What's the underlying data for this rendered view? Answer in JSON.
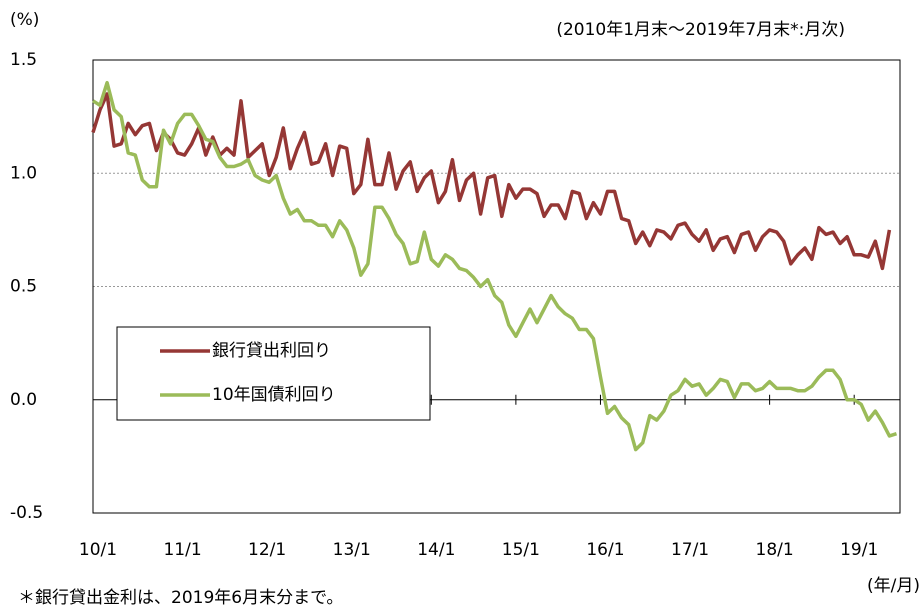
{
  "chart_data": {
    "type": "line",
    "subtitle": "(2010年1月末～2019年7月末*:月次)",
    "y_unit": "(%)",
    "x_unit": "(年/月)",
    "footnote": "＊銀行貸出金利は、2019年6月末分まで。",
    "categories": [
      "10/1",
      null,
      null,
      null,
      null,
      null,
      null,
      null,
      null,
      null,
      null,
      null,
      "11/1",
      null,
      null,
      null,
      null,
      null,
      null,
      null,
      null,
      null,
      null,
      null,
      "12/1",
      null,
      null,
      null,
      null,
      null,
      null,
      null,
      null,
      null,
      null,
      null,
      "13/1",
      null,
      null,
      null,
      null,
      null,
      null,
      null,
      null,
      null,
      null,
      null,
      "14/1",
      null,
      null,
      null,
      null,
      null,
      null,
      null,
      null,
      null,
      null,
      null,
      "15/1",
      null,
      null,
      null,
      null,
      null,
      null,
      null,
      null,
      null,
      null,
      null,
      "16/1",
      null,
      null,
      null,
      null,
      null,
      null,
      null,
      null,
      null,
      null,
      null,
      "17/1",
      null,
      null,
      null,
      null,
      null,
      null,
      null,
      null,
      null,
      null,
      null,
      "18/1",
      null,
      null,
      null,
      null,
      null,
      null,
      null,
      null,
      null,
      null,
      null,
      "19/1",
      null,
      null,
      null,
      null,
      null,
      null
    ],
    "series": [
      {
        "name": "銀行貸出利回り",
        "color": "#953735",
        "values": [
          1.18,
          1.28,
          1.35,
          1.12,
          1.13,
          1.22,
          1.17,
          1.21,
          1.22,
          1.1,
          1.18,
          1.15,
          1.09,
          1.08,
          1.13,
          1.2,
          1.08,
          1.16,
          1.08,
          1.11,
          1.08,
          1.32,
          1.07,
          1.1,
          1.13,
          0.99,
          1.07,
          1.2,
          1.02,
          1.11,
          1.18,
          1.04,
          1.05,
          1.13,
          0.99,
          1.12,
          1.11,
          0.91,
          0.95,
          1.15,
          0.95,
          0.95,
          1.09,
          0.93,
          1.01,
          1.05,
          0.92,
          0.98,
          1.01,
          0.87,
          0.92,
          1.06,
          0.88,
          0.97,
          1.0,
          0.82,
          0.98,
          0.99,
          0.81,
          0.95,
          0.89,
          0.93,
          0.93,
          0.91,
          0.81,
          0.86,
          0.86,
          0.8,
          0.92,
          0.91,
          0.8,
          0.87,
          0.82,
          0.92,
          0.92,
          0.8,
          0.79,
          0.69,
          0.74,
          0.68,
          0.75,
          0.74,
          0.71,
          0.77,
          0.78,
          0.73,
          0.7,
          0.75,
          0.66,
          0.71,
          0.72,
          0.65,
          0.73,
          0.74,
          0.66,
          0.72,
          0.75,
          0.74,
          0.7,
          0.6,
          0.64,
          0.67,
          0.62,
          0.76,
          0.73,
          0.74,
          0.69,
          0.72,
          0.64,
          0.64,
          0.63,
          0.7,
          0.58,
          0.75,
          null
        ]
      },
      {
        "name": "10年国債利回り",
        "color": "#9bbb59",
        "values": [
          1.32,
          1.3,
          1.4,
          1.28,
          1.25,
          1.09,
          1.08,
          0.97,
          0.94,
          0.94,
          1.19,
          1.13,
          1.22,
          1.26,
          1.26,
          1.21,
          1.15,
          1.14,
          1.07,
          1.03,
          1.03,
          1.04,
          1.06,
          0.99,
          0.97,
          0.96,
          0.99,
          0.89,
          0.82,
          0.84,
          0.79,
          0.79,
          0.77,
          0.77,
          0.72,
          0.79,
          0.75,
          0.67,
          0.55,
          0.6,
          0.85,
          0.85,
          0.8,
          0.73,
          0.69,
          0.6,
          0.61,
          0.74,
          0.62,
          0.59,
          0.64,
          0.62,
          0.58,
          0.57,
          0.54,
          0.5,
          0.53,
          0.46,
          0.43,
          0.33,
          0.28,
          0.34,
          0.4,
          0.34,
          0.4,
          0.46,
          0.41,
          0.38,
          0.36,
          0.31,
          0.31,
          0.27,
          0.1,
          -0.06,
          -0.03,
          -0.08,
          -0.11,
          -0.22,
          -0.19,
          -0.07,
          -0.09,
          -0.05,
          0.02,
          0.04,
          0.09,
          0.06,
          0.07,
          0.02,
          0.05,
          0.09,
          0.08,
          0.01,
          0.07,
          0.07,
          0.04,
          0.05,
          0.08,
          0.05,
          0.05,
          0.05,
          0.04,
          0.04,
          0.06,
          0.1,
          0.13,
          0.13,
          0.09,
          0.0,
          0.0,
          -0.02,
          -0.09,
          -0.05,
          -0.1,
          -0.16,
          -0.15
        ]
      }
    ],
    "ylim": [
      -0.5,
      1.5
    ],
    "yticks": [
      {
        "value": -0.5,
        "label": "-0.5"
      },
      {
        "value": 0,
        "label": "0.0"
      },
      0.5,
      {
        "value": 1,
        "label": "1.0"
      },
      1.5
    ],
    "grid": true,
    "legend": "center-left"
  }
}
